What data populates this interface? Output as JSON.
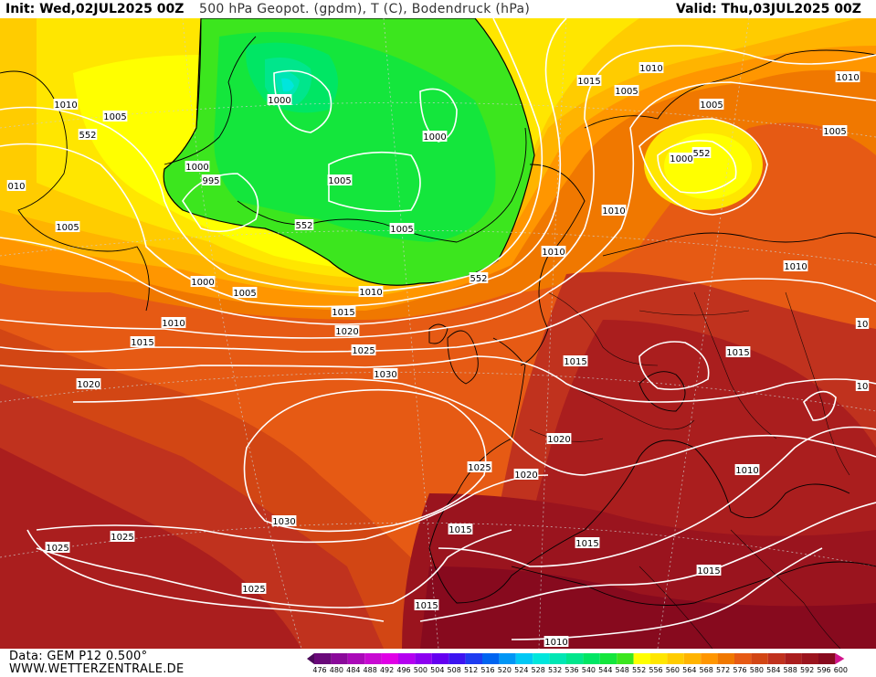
{
  "header": {
    "init": "Init: Wed,02JUL2025 00Z",
    "title": "500 hPa Geopot. (gpdm), T (C), Bodendruck (hPa)",
    "valid": "Valid: Thu,03JUL2025 00Z"
  },
  "footer": {
    "data_source": "Data: GEM P12 0.500°",
    "website": "WWW.WETTERZENTRALE.DE"
  },
  "colorbar": {
    "ticks": [
      "476",
      "480",
      "484",
      "488",
      "492",
      "496",
      "500",
      "504",
      "508",
      "512",
      "516",
      "520",
      "524",
      "528",
      "532",
      "536",
      "540",
      "544",
      "548",
      "552",
      "556",
      "560",
      "564",
      "568",
      "572",
      "576",
      "580",
      "584",
      "588",
      "592",
      "596",
      "600"
    ],
    "colors": [
      "#4b0a5a",
      "#6a0a7a",
      "#8a0a9a",
      "#aa0ab8",
      "#c80ad2",
      "#e000e6",
      "#b400f0",
      "#8c00f0",
      "#6400f0",
      "#3c14f0",
      "#1e3cf0",
      "#0064f0",
      "#0096f5",
      "#00c8f5",
      "#00e6dc",
      "#00e6b4",
      "#00e68c",
      "#00e664",
      "#14e63c",
      "#3ce61e",
      "#ffff00",
      "#ffe600",
      "#ffcc00",
      "#ffb400",
      "#ff9600",
      "#f07800",
      "#e65a14",
      "#d24614",
      "#c0321e",
      "#aa1e1e",
      "#9a141e",
      "#870a1e",
      "#d2148c"
    ]
  },
  "pressure_labels": [
    {
      "text": "1010"
    },
    {
      "text": "1005"
    },
    {
      "text": "552"
    },
    {
      "text": "1000"
    },
    {
      "text": "1000"
    },
    {
      "text": "995"
    },
    {
      "text": "010"
    },
    {
      "text": "1005"
    },
    {
      "text": "1005"
    },
    {
      "text": "552"
    },
    {
      "text": "1000"
    },
    {
      "text": "1005"
    },
    {
      "text": "1000"
    },
    {
      "text": "1005"
    },
    {
      "text": "1010"
    },
    {
      "text": "552"
    },
    {
      "text": "1010"
    },
    {
      "text": "1015"
    },
    {
      "text": "1005"
    },
    {
      "text": "1005"
    },
    {
      "text": "552"
    },
    {
      "text": "1000"
    },
    {
      "text": "1005"
    },
    {
      "text": "1010"
    },
    {
      "text": "1010"
    },
    {
      "text": "1010"
    },
    {
      "text": "1010"
    },
    {
      "text": "1010"
    },
    {
      "text": "1015"
    },
    {
      "text": "1020"
    },
    {
      "text": "1025"
    },
    {
      "text": "1030"
    },
    {
      "text": "1015"
    },
    {
      "text": "1020"
    },
    {
      "text": "1015"
    },
    {
      "text": "1015"
    },
    {
      "text": "10"
    },
    {
      "text": "10"
    },
    {
      "text": "1020"
    },
    {
      "text": "1025"
    },
    {
      "text": "1020"
    },
    {
      "text": "1010"
    },
    {
      "text": "1030"
    },
    {
      "text": "1025"
    },
    {
      "text": "1025"
    },
    {
      "text": "1015"
    },
    {
      "text": "1015"
    },
    {
      "text": "1015"
    },
    {
      "text": "1025"
    },
    {
      "text": "1015"
    },
    {
      "text": "1010"
    }
  ]
}
